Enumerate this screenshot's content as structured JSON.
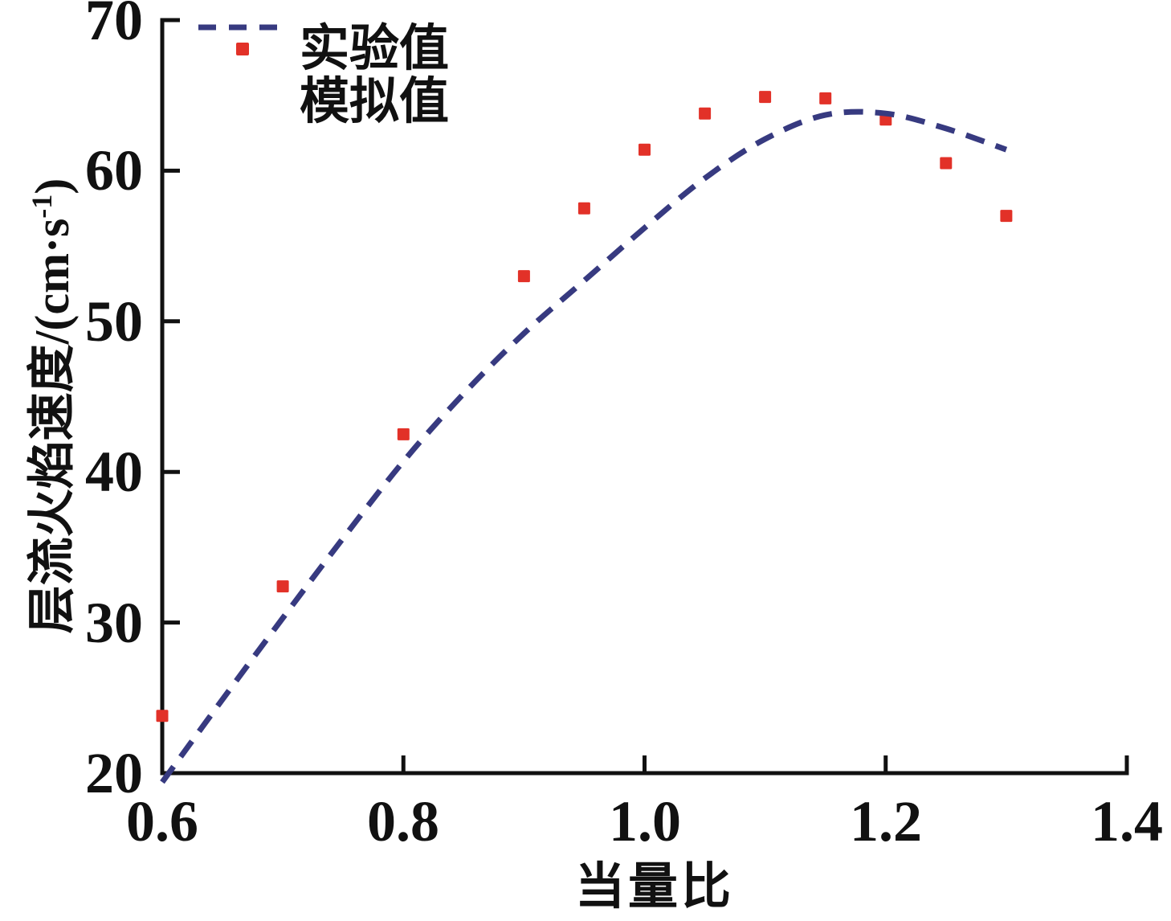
{
  "figure": {
    "background": "#ffffff",
    "axis_color": "#111111"
  },
  "axes": {
    "x_label": "当量比",
    "y_label_full": "层流火焰速度/(cm·s⁻¹)",
    "y_label_prefix": "层流火焰速度/(cm·s",
    "y_label_superscript": "-1",
    "y_label_suffix": ")",
    "x_tick_labels": [
      "0.6",
      "0.8",
      "1.0",
      "1.2",
      "1.4"
    ],
    "y_tick_labels": [
      "20",
      "30",
      "40",
      "50",
      "60",
      "70"
    ]
  },
  "legend": {
    "experimental_label": "实验值",
    "simulated_label": "模拟值"
  },
  "chart_data": {
    "type": "scatter",
    "title": "",
    "xlabel": "当量比",
    "ylabel": "层流火焰速度/(cm·s⁻¹)",
    "xlim": [
      0.6,
      1.4
    ],
    "ylim": [
      20,
      70
    ],
    "x_ticks": [
      0.6,
      0.8,
      1.0,
      1.2,
      1.4
    ],
    "y_ticks": [
      20,
      30,
      40,
      50,
      60,
      70
    ],
    "grid": false,
    "legend_position": "top-left-inside",
    "series": [
      {
        "name": "实验值",
        "type": "scatter",
        "marker": "square",
        "marker_size": 15,
        "color": "#e23128",
        "x": [
          0.6,
          0.7,
          0.8,
          0.9,
          0.95,
          1.0,
          1.05,
          1.1,
          1.15,
          1.2,
          1.25,
          1.3
        ],
        "y": [
          23.8,
          32.4,
          42.5,
          53.0,
          57.5,
          61.4,
          63.8,
          64.9,
          64.8,
          63.4,
          60.5,
          57.0
        ]
      },
      {
        "name": "模拟值",
        "type": "line",
        "line_style": "dashed",
        "line_width": 7,
        "color": "#373a80",
        "x": [
          0.6,
          0.65,
          0.7,
          0.75,
          0.8,
          0.85,
          0.9,
          0.95,
          1.0,
          1.05,
          1.1,
          1.15,
          1.2,
          1.25,
          1.3
        ],
        "y": [
          19.4,
          24.9,
          30.3,
          35.6,
          40.7,
          45.2,
          49.2,
          52.7,
          56.2,
          59.5,
          62.1,
          63.7,
          63.8,
          62.8,
          61.4
        ]
      }
    ]
  }
}
